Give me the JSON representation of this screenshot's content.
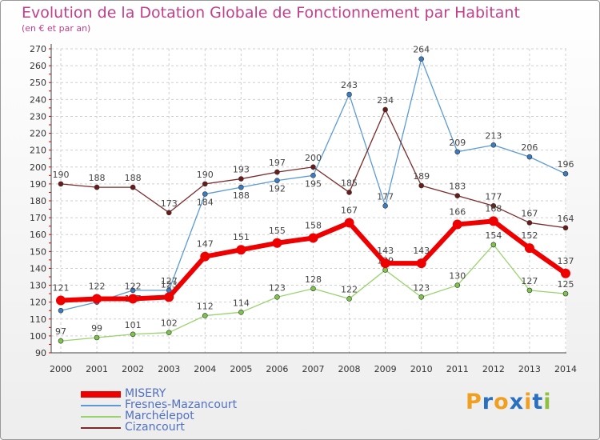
{
  "title": "Evolution de la Dotation Globale de Fonctionnement par Habitant",
  "subtitle": "(en € et par an)",
  "logo": {
    "letters": [
      "P",
      "r",
      "o",
      "x",
      "i",
      "t",
      "i"
    ],
    "colors": [
      "#f0a020",
      "#2a70c0",
      "#f0a020",
      "#2a70c0",
      "#f0a020",
      "#2a70c0",
      "#90c040"
    ]
  },
  "chart_data": {
    "type": "line",
    "title": "Evolution de la Dotation Globale de Fonctionnement par Habitant",
    "subtitle": "(en € et par an)",
    "x": [
      "2000",
      "2001",
      "2002",
      "2003",
      "2004",
      "2005",
      "2006",
      "2007",
      "2008",
      "2009",
      "2010",
      "2011",
      "2012",
      "2013",
      "2014"
    ],
    "ylim": [
      90,
      270
    ],
    "yticks": [
      90,
      100,
      110,
      120,
      130,
      140,
      150,
      160,
      170,
      180,
      190,
      200,
      210,
      220,
      230,
      240,
      250,
      260,
      270
    ],
    "grid": true,
    "legend_position": "bottom-left",
    "series": [
      {
        "name": "Fresnes-Mazancourt",
        "color": "#5b9bd5",
        "point": "#3a7cc0",
        "width": 1.3,
        "values": [
          115,
          120,
          127,
          127,
          184,
          188,
          192,
          195,
          243,
          177,
          264,
          209,
          213,
          206,
          196
        ],
        "labels": [
          "",
          "",
          "127",
          "127",
          "184",
          "188",
          "192",
          "195",
          "243",
          "177",
          "264",
          "209",
          "213",
          "206",
          "196"
        ],
        "label_pos": [
          "",
          "",
          "below",
          "above",
          "below",
          "below",
          "below",
          "below",
          "above",
          "above",
          "above",
          "above",
          "above",
          "above",
          "above"
        ]
      },
      {
        "name": "Marchélepot",
        "color": "#99d36e",
        "point": "#7cc44a",
        "width": 1.3,
        "values": [
          97,
          99,
          101,
          102,
          112,
          114,
          123,
          128,
          122,
          139,
          123,
          130,
          154,
          127,
          125
        ],
        "labels": [
          "97",
          "99",
          "101",
          "102",
          "112",
          "114",
          "123",
          "128",
          "122",
          "139",
          "123",
          "130",
          "154",
          "127",
          "125"
        ],
        "label_pos": [
          "above",
          "above",
          "above",
          "above",
          "above",
          "above",
          "above",
          "above",
          "above",
          "above",
          "above",
          "above",
          "above",
          "above",
          "above"
        ]
      },
      {
        "name": "Cizancourt",
        "color": "#7b2a2a",
        "point": "#6b1a1a",
        "width": 1.3,
        "values": [
          190,
          188,
          188,
          173,
          190,
          193,
          197,
          200,
          185,
          234,
          189,
          183,
          177,
          167,
          164
        ],
        "labels": [
          "190",
          "188",
          "188",
          "173",
          "190",
          "193",
          "197",
          "200",
          "185",
          "234",
          "189",
          "183",
          "177",
          "167",
          "164"
        ],
        "label_pos": [
          "above",
          "above",
          "above",
          "above",
          "above",
          "above",
          "above",
          "above",
          "above",
          "above",
          "above",
          "above",
          "above",
          "above",
          "above"
        ]
      },
      {
        "name": "MISERY",
        "color": "#ee0000",
        "point": "#ee0000",
        "width": 6,
        "values": [
          121,
          122,
          122,
          123,
          147,
          151,
          155,
          158,
          167,
          143,
          143,
          166,
          168,
          152,
          137
        ],
        "labels": [
          "121",
          "122",
          "122",
          "123",
          "147",
          "151",
          "155",
          "158",
          "167",
          "143",
          "143",
          "166",
          "168",
          "152",
          "137"
        ],
        "label_pos": [
          "above",
          "above",
          "above",
          "above",
          "above",
          "above",
          "above",
          "above",
          "above",
          "above",
          "above",
          "above",
          "above",
          "above",
          "above"
        ]
      }
    ]
  }
}
